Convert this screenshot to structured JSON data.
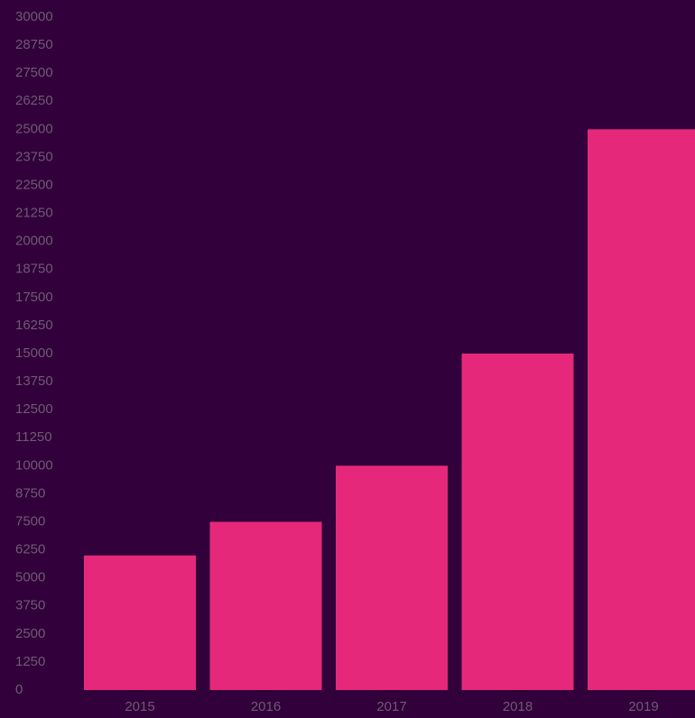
{
  "colors": {
    "background": "#32003A",
    "bar": "#E6287B",
    "tick_text": "#6E5A74"
  },
  "chart_data": {
    "type": "bar",
    "categories": [
      "2015",
      "2016",
      "2017",
      "2018",
      "2019"
    ],
    "values": [
      6000,
      7500,
      10000,
      15000,
      25000
    ],
    "ylim": [
      0,
      30000
    ],
    "yticks": [
      0,
      1250,
      2500,
      3750,
      5000,
      6250,
      7500,
      8750,
      10000,
      11250,
      12500,
      13750,
      15000,
      16250,
      17500,
      18750,
      20000,
      21250,
      22500,
      23750,
      25000,
      26250,
      27500,
      28750,
      30000
    ],
    "grid": false,
    "legend": "none"
  }
}
